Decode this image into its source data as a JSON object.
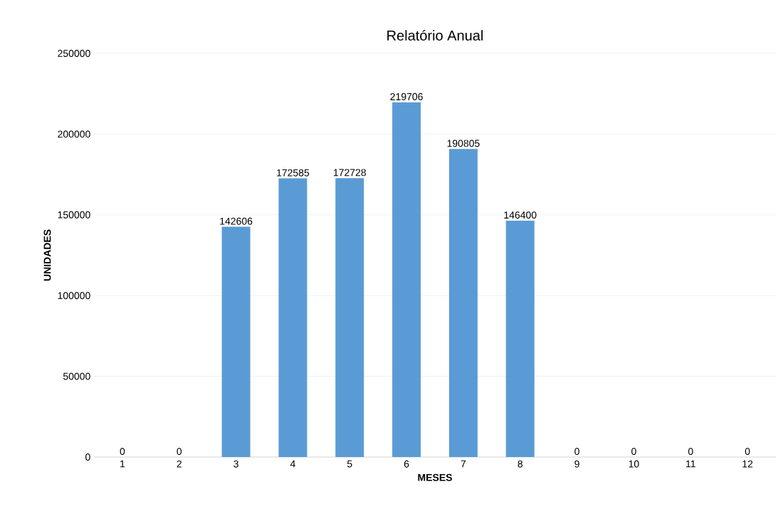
{
  "chart_data": {
    "type": "bar",
    "title": "Relatório Anual",
    "xlabel": "MESES",
    "ylabel": "UNIDADES",
    "categories": [
      "1",
      "2",
      "3",
      "4",
      "5",
      "6",
      "7",
      "8",
      "9",
      "10",
      "11",
      "12"
    ],
    "values": [
      0,
      0,
      142606,
      172585,
      172728,
      219706,
      190805,
      146400,
      0,
      0,
      0,
      0
    ],
    "color": "#5b9bd5",
    "data_labels": true,
    "grid": "y",
    "ylim": [
      0,
      250000
    ],
    "yticks": [
      0,
      50000,
      100000,
      150000,
      200000,
      250000
    ]
  }
}
